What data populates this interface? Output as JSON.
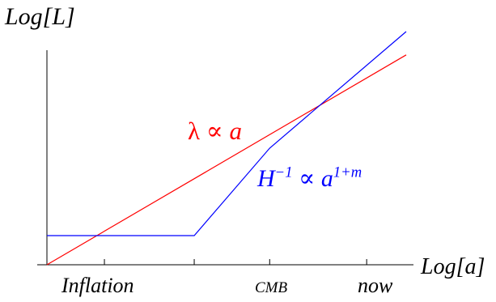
{
  "chart_data": {
    "type": "line",
    "title": "",
    "ylabel": "Log[L]",
    "xlabel": "Log[a]",
    "xlim": [
      0,
      10
    ],
    "ylim": [
      0,
      10
    ],
    "grid": false,
    "legend": "none",
    "x_ticks": [
      {
        "x": 1.6,
        "label": "Inflation",
        "small": false
      },
      {
        "x": 6.2,
        "label": "CMB",
        "small": true
      },
      {
        "x": 8.9,
        "label": "now",
        "small": false
      }
    ],
    "extra_ticks": [
      4.1
    ],
    "series": [
      {
        "color": "#ff0000",
        "annotation": {
          "greek": "λ",
          "rel": " ∝ ",
          "rhs": "a"
        },
        "points": [
          [
            0,
            0
          ],
          [
            10,
            9.0
          ]
        ]
      },
      {
        "color": "#0000ff",
        "annotation": {
          "base": "H",
          "base_sup": "−1",
          "rel": " ∝ ",
          "rhs": "a",
          "rhs_sup": "1+m"
        },
        "points": [
          [
            0,
            1.25
          ],
          [
            4.1,
            1.25
          ],
          [
            6.2,
            5.0
          ],
          [
            10,
            10.0
          ]
        ]
      }
    ]
  }
}
